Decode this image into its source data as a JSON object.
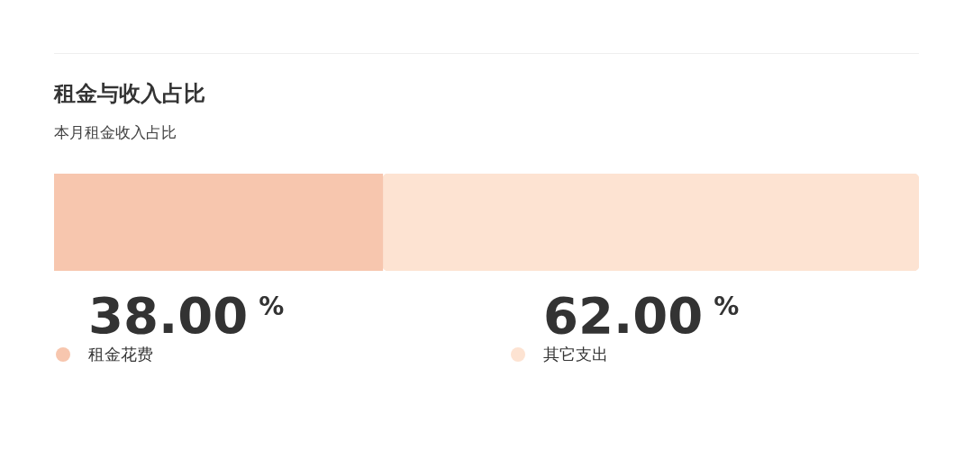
{
  "chart_data": {
    "type": "bar",
    "orientation": "horizontal",
    "stacked": true,
    "title": "租金与收入占比",
    "subtitle": "本月租金收入占比",
    "categories": [
      null
    ],
    "legend": "bottom",
    "series": [
      {
        "name": "租金花费",
        "color": "#f7c6ae",
        "values": [
          38
        ],
        "value_labels": [
          "38.00$^{%}$"
        ]
      },
      {
        "name": "其它支出",
        "color": "#fde3d2",
        "values": [
          62
        ],
        "value_labels": [
          "62.00$^{%}$"
        ]
      }
    ]
  }
}
